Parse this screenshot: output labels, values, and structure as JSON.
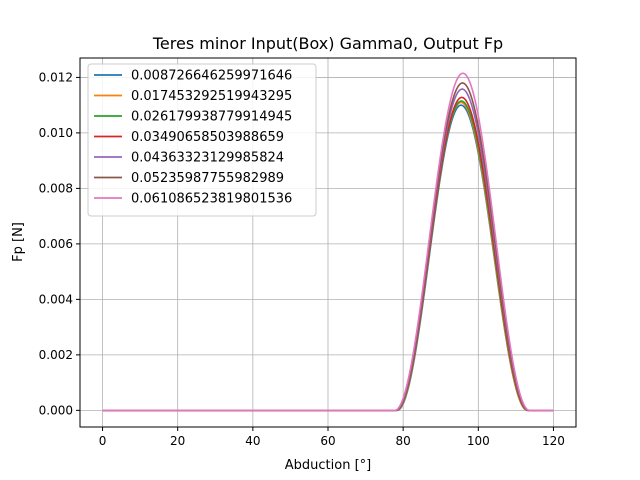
{
  "chart_data": {
    "type": "line",
    "title": "Teres minor Input(Box) Gamma0, Output Fp",
    "xlabel": "Abduction [°]",
    "ylabel": "Fp [N]",
    "xlim": [
      -6,
      126
    ],
    "ylim": [
      -0.0006,
      0.0127
    ],
    "xticks": [
      0,
      20,
      40,
      60,
      80,
      100,
      120
    ],
    "xtick_labels": [
      "0",
      "20",
      "40",
      "60",
      "80",
      "100",
      "120"
    ],
    "yticks": [
      0,
      0.002,
      0.004,
      0.006,
      0.008,
      0.01,
      0.012
    ],
    "ytick_labels": [
      "0.000",
      "0.002",
      "0.004",
      "0.006",
      "0.008",
      "0.010",
      "0.012"
    ],
    "grid": true,
    "legend_position": "top-left",
    "series": [
      {
        "name": "0.008726646259971646",
        "color": "#1f77b4",
        "start": 78.4,
        "end": 113.1,
        "peak": 95.4,
        "max": 0.011,
        "values": [
          [
            0,
            0
          ],
          [
            78.4,
            0
          ],
          [
            80,
            0.001
          ],
          [
            82,
            0.0028
          ],
          [
            84,
            0.0047
          ],
          [
            86,
            0.0066
          ],
          [
            88,
            0.0082
          ],
          [
            90,
            0.0095
          ],
          [
            92,
            0.0104
          ],
          [
            94,
            0.0109
          ],
          [
            95.4,
            0.011
          ],
          [
            97,
            0.0109
          ],
          [
            99,
            0.0104
          ],
          [
            101,
            0.0095
          ],
          [
            103,
            0.0081
          ],
          [
            105,
            0.0063
          ],
          [
            107,
            0.0043
          ],
          [
            109,
            0.0023
          ],
          [
            111,
            0.0008
          ],
          [
            113.1,
            0
          ],
          [
            120,
            0
          ]
        ]
      },
      {
        "name": "0.017453292519943295",
        "color": "#ff7f0e",
        "start": 78.3,
        "end": 113.1,
        "peak": 95.4,
        "max": 0.0111,
        "values": [
          [
            0,
            0
          ],
          [
            78.3,
            0
          ],
          [
            80,
            0.0011
          ],
          [
            82,
            0.0029
          ],
          [
            84,
            0.0048
          ],
          [
            86,
            0.0067
          ],
          [
            88,
            0.0083
          ],
          [
            90,
            0.0096
          ],
          [
            92,
            0.0105
          ],
          [
            94,
            0.011
          ],
          [
            95.4,
            0.0111
          ],
          [
            97,
            0.011
          ],
          [
            99,
            0.0105
          ],
          [
            101,
            0.0096
          ],
          [
            103,
            0.0082
          ],
          [
            105,
            0.0064
          ],
          [
            107,
            0.0044
          ],
          [
            109,
            0.0024
          ],
          [
            111,
            0.0008
          ],
          [
            113.1,
            0
          ],
          [
            120,
            0
          ]
        ]
      },
      {
        "name": "0.026179938779914945",
        "color": "#2ca02c",
        "start": 78.2,
        "end": 113.2,
        "peak": 95.5,
        "max": 0.01115,
        "values": [
          [
            0,
            0
          ],
          [
            78.2,
            0
          ],
          [
            80,
            0.0011
          ],
          [
            82,
            0.003
          ],
          [
            84,
            0.0049
          ],
          [
            86,
            0.0068
          ],
          [
            88,
            0.0084
          ],
          [
            90,
            0.0097
          ],
          [
            92,
            0.0106
          ],
          [
            94,
            0.0111
          ],
          [
            95.5,
            0.01115
          ],
          [
            97,
            0.0111
          ],
          [
            99,
            0.0106
          ],
          [
            101,
            0.0097
          ],
          [
            103,
            0.0083
          ],
          [
            105,
            0.0065
          ],
          [
            107,
            0.0045
          ],
          [
            109,
            0.0025
          ],
          [
            111,
            0.0009
          ],
          [
            113.2,
            0
          ],
          [
            120,
            0
          ]
        ]
      },
      {
        "name": "0.03490658503988659",
        "color": "#d62728",
        "start": 78.1,
        "end": 113.3,
        "peak": 95.6,
        "max": 0.01128,
        "values": [
          [
            0,
            0
          ],
          [
            78.1,
            0
          ],
          [
            80,
            0.0012
          ],
          [
            82,
            0.0031
          ],
          [
            84,
            0.005
          ],
          [
            86,
            0.0069
          ],
          [
            88,
            0.0085
          ],
          [
            90,
            0.0098
          ],
          [
            92,
            0.0107
          ],
          [
            94,
            0.0112
          ],
          [
            95.6,
            0.01128
          ],
          [
            97,
            0.0112
          ],
          [
            99,
            0.0107
          ],
          [
            101,
            0.0098
          ],
          [
            103,
            0.0084
          ],
          [
            105,
            0.0066
          ],
          [
            107,
            0.0046
          ],
          [
            109,
            0.0026
          ],
          [
            111,
            0.0009
          ],
          [
            113.3,
            0
          ],
          [
            120,
            0
          ]
        ]
      },
      {
        "name": "0.04363323129985824",
        "color": "#9467bd",
        "start": 78.0,
        "end": 113.4,
        "peak": 95.7,
        "max": 0.01158,
        "values": [
          [
            0,
            0
          ],
          [
            78.0,
            0
          ],
          [
            80,
            0.0013
          ],
          [
            82,
            0.0032
          ],
          [
            84,
            0.0052
          ],
          [
            86,
            0.0071
          ],
          [
            88,
            0.0088
          ],
          [
            90,
            0.0101
          ],
          [
            92,
            0.011
          ],
          [
            94,
            0.0115
          ],
          [
            95.7,
            0.01158
          ],
          [
            97,
            0.0115
          ],
          [
            99,
            0.011
          ],
          [
            101,
            0.01
          ],
          [
            103,
            0.0086
          ],
          [
            105,
            0.0068
          ],
          [
            107,
            0.0047
          ],
          [
            109,
            0.0027
          ],
          [
            111,
            0.001
          ],
          [
            113.4,
            0
          ],
          [
            120,
            0
          ]
        ]
      },
      {
        "name": "0.05235987755982989",
        "color": "#8c564b",
        "start": 77.9,
        "end": 113.5,
        "peak": 95.8,
        "max": 0.0118,
        "values": [
          [
            0,
            0
          ],
          [
            77.9,
            0
          ],
          [
            80,
            0.0014
          ],
          [
            82,
            0.0033
          ],
          [
            84,
            0.0053
          ],
          [
            86,
            0.0073
          ],
          [
            88,
            0.009
          ],
          [
            90,
            0.0103
          ],
          [
            92,
            0.0112
          ],
          [
            94,
            0.0117
          ],
          [
            95.8,
            0.0118
          ],
          [
            97,
            0.0117
          ],
          [
            99,
            0.0112
          ],
          [
            101,
            0.0102
          ],
          [
            103,
            0.0088
          ],
          [
            105,
            0.0069
          ],
          [
            107,
            0.0048
          ],
          [
            109,
            0.0028
          ],
          [
            111,
            0.0011
          ],
          [
            113.5,
            0
          ],
          [
            120,
            0
          ]
        ]
      },
      {
        "name": "0.061086523819801536",
        "color": "#e377c2",
        "start": 77.8,
        "end": 113.6,
        "peak": 95.9,
        "max": 0.01215,
        "values": [
          [
            0,
            0
          ],
          [
            77.8,
            0
          ],
          [
            80,
            0.0015
          ],
          [
            82,
            0.0034
          ],
          [
            84,
            0.0055
          ],
          [
            86,
            0.0075
          ],
          [
            88,
            0.0093
          ],
          [
            90,
            0.0106
          ],
          [
            92,
            0.0115
          ],
          [
            94,
            0.012
          ],
          [
            95.9,
            0.01215
          ],
          [
            97,
            0.012
          ],
          [
            99,
            0.0115
          ],
          [
            101,
            0.0105
          ],
          [
            103,
            0.009
          ],
          [
            105,
            0.0071
          ],
          [
            107,
            0.005
          ],
          [
            109,
            0.0029
          ],
          [
            111,
            0.0011
          ],
          [
            113.6,
            0
          ],
          [
            120,
            0
          ]
        ]
      }
    ]
  }
}
